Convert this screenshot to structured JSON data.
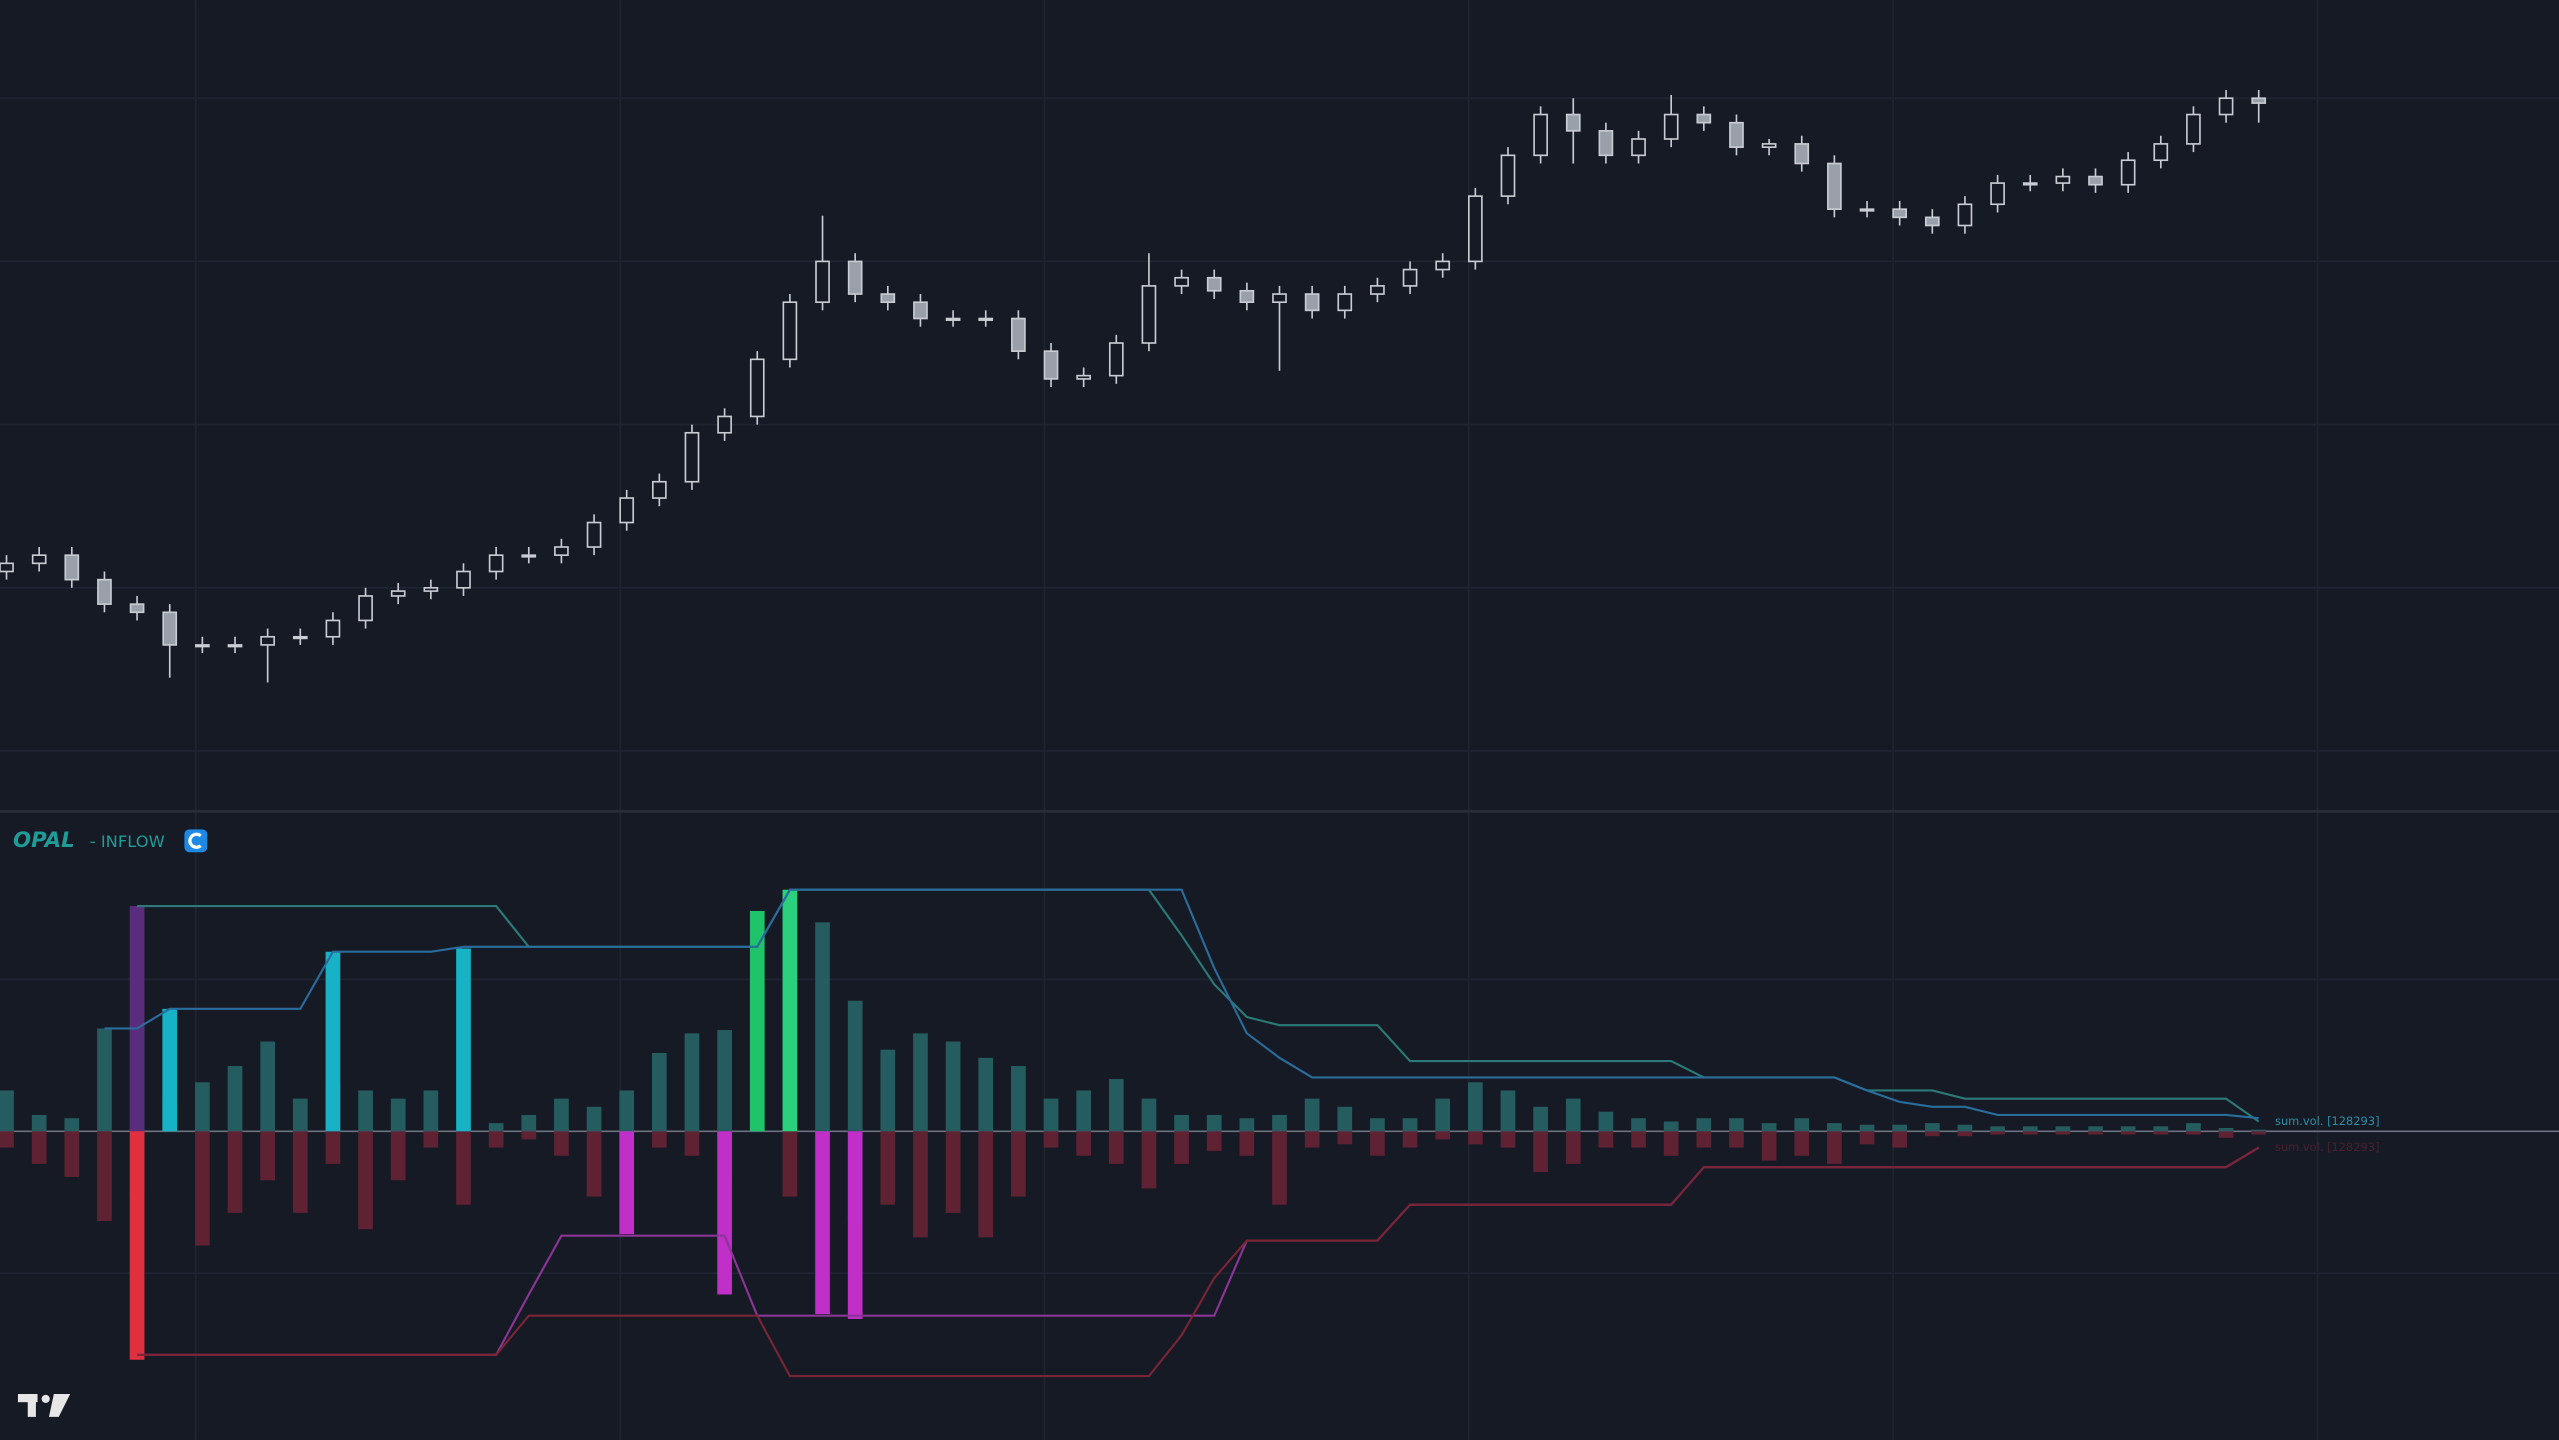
{
  "chart_data": [
    {
      "type": "candlestick",
      "up_color": "#161a25",
      "down_color": "#9aa0aa",
      "wick_color": "#c9ccd2",
      "ylim": [
        0,
        500
      ],
      "open": [
        150,
        155,
        160,
        145,
        130,
        125,
        105,
        105,
        105,
        110,
        110,
        120,
        135,
        138,
        140,
        150,
        160,
        160,
        165,
        180,
        195,
        205,
        235,
        245,
        280,
        315,
        340,
        320,
        315,
        305,
        305,
        305,
        285,
        268,
        270,
        290,
        325,
        330,
        322,
        315,
        320,
        310,
        320,
        325,
        335,
        340,
        380,
        405,
        430,
        420,
        405,
        415,
        430,
        425,
        410,
        412,
        400,
        372,
        372,
        367,
        362,
        375,
        388,
        388,
        392,
        387,
        402,
        412,
        430,
        440
      ],
      "high": [
        160,
        165,
        165,
        150,
        135,
        130,
        110,
        110,
        115,
        115,
        125,
        140,
        143,
        145,
        155,
        165,
        165,
        170,
        185,
        200,
        210,
        240,
        250,
        285,
        320,
        368,
        345,
        325,
        320,
        310,
        310,
        310,
        290,
        275,
        295,
        345,
        335,
        335,
        327,
        325,
        325,
        325,
        330,
        340,
        345,
        385,
        410,
        435,
        440,
        425,
        420,
        442,
        435,
        430,
        415,
        417,
        405,
        377,
        377,
        372,
        380,
        393,
        393,
        397,
        397,
        407,
        417,
        435,
        445,
        445
      ],
      "low": [
        145,
        150,
        140,
        125,
        120,
        85,
        100,
        100,
        82,
        105,
        105,
        115,
        130,
        133,
        135,
        145,
        155,
        155,
        160,
        175,
        190,
        200,
        230,
        240,
        275,
        310,
        315,
        310,
        300,
        300,
        300,
        280,
        263,
        263,
        265,
        285,
        320,
        317,
        310,
        273,
        305,
        305,
        315,
        320,
        330,
        335,
        375,
        400,
        400,
        400,
        400,
        410,
        420,
        405,
        405,
        395,
        367,
        367,
        362,
        357,
        357,
        370,
        383,
        383,
        382,
        382,
        397,
        407,
        425,
        425
      ],
      "close": [
        155,
        160,
        145,
        130,
        125,
        105,
        105,
        105,
        110,
        110,
        120,
        135,
        138,
        140,
        150,
        160,
        160,
        165,
        180,
        195,
        205,
        235,
        245,
        280,
        315,
        340,
        320,
        315,
        305,
        305,
        305,
        285,
        268,
        270,
        290,
        325,
        330,
        322,
        315,
        320,
        310,
        320,
        325,
        335,
        340,
        380,
        405,
        430,
        420,
        405,
        415,
        430,
        425,
        410,
        412,
        400,
        372,
        372,
        367,
        362,
        375,
        388,
        388,
        392,
        387,
        402,
        412,
        430,
        440,
        437
      ]
    },
    {
      "type": "indicator",
      "title": "OPAL",
      "subtitle": "- INFLOW",
      "ylim": [
        -189,
        196
      ],
      "bars_up": {
        "color": "#255c60",
        "values": [
          25,
          10,
          8,
          63,
          65,
          20,
          30,
          40,
          55,
          20,
          30,
          25,
          20,
          25,
          0,
          5,
          10,
          20,
          15,
          25,
          48,
          60,
          62,
          90,
          0,
          128,
          80,
          50,
          60,
          55,
          45,
          40,
          20,
          25,
          32,
          20,
          10,
          10,
          8,
          10,
          20,
          15,
          8,
          8,
          20,
          30,
          25,
          15,
          20,
          12,
          8,
          6,
          8,
          8,
          5,
          8,
          5,
          4,
          4,
          5,
          4,
          3,
          3,
          3,
          3,
          3,
          3,
          5,
          2,
          1
        ]
      },
      "bars_down": {
        "color": "#5e2233",
        "values": [
          -10,
          -20,
          -28,
          -55,
          -40,
          0,
          -70,
          -50,
          -30,
          -50,
          -20,
          -60,
          -30,
          -10,
          -45,
          -10,
          -5,
          -15,
          -40,
          0,
          -10,
          -15,
          -30,
          0,
          -40,
          0,
          -55,
          -45,
          -65,
          -50,
          -65,
          -40,
          -10,
          -15,
          -20,
          -35,
          -20,
          -12,
          -15,
          -45,
          -10,
          -8,
          -15,
          -10,
          -5,
          -8,
          -10,
          -25,
          -20,
          -10,
          -10,
          -15,
          -10,
          -10,
          -18,
          -15,
          -20,
          -8,
          -10,
          -3,
          -3,
          -2,
          -2,
          -2,
          -2,
          -2,
          -2,
          -2,
          -4,
          -2
        ]
      },
      "signals": [
        {
          "index": 4,
          "value": 138,
          "color": "#5a2d7c"
        },
        {
          "index": 4,
          "value": -140,
          "color": "#e0303f"
        },
        {
          "index": 5,
          "value": 75,
          "color": "#17b2c6"
        },
        {
          "index": 10,
          "value": 110,
          "color": "#17b2c6"
        },
        {
          "index": 14,
          "value": 112,
          "color": "#17b2c6"
        },
        {
          "index": 19,
          "value": -63,
          "color": "#c02fc8"
        },
        {
          "index": 22,
          "value": -100,
          "color": "#c02fc8"
        },
        {
          "index": 23,
          "value": 135,
          "color": "#1fc46a"
        },
        {
          "index": 24,
          "value": 148,
          "color": "#2ad07e"
        },
        {
          "index": 25,
          "value": -112,
          "color": "#c02fc8"
        },
        {
          "index": 26,
          "value": -115,
          "color": "#c02fc8"
        }
      ],
      "lines": [
        {
          "color": "#2b7a78",
          "values": [
            null,
            null,
            null,
            null,
            138,
            138,
            138,
            138,
            138,
            138,
            138,
            138,
            138,
            138,
            138,
            138,
            113,
            113,
            113,
            113,
            113,
            113,
            113,
            113,
            148,
            148,
            148,
            148,
            148,
            148,
            148,
            148,
            148,
            148,
            148,
            148,
            120,
            90,
            70,
            65,
            65,
            65,
            65,
            43,
            43,
            43,
            43,
            43,
            43,
            43,
            43,
            43,
            33,
            33,
            33,
            33,
            33,
            25,
            25,
            25,
            20,
            20,
            20,
            20,
            20,
            20,
            20,
            20,
            20,
            6
          ]
        },
        {
          "color": "#2a6c9c",
          "values": [
            null,
            null,
            null,
            63,
            63,
            75,
            75,
            75,
            75,
            75,
            110,
            110,
            110,
            110,
            113,
            113,
            113,
            113,
            113,
            113,
            113,
            113,
            113,
            113,
            148,
            148,
            148,
            148,
            148,
            148,
            148,
            148,
            148,
            148,
            148,
            148,
            148,
            100,
            60,
            45,
            33,
            33,
            33,
            33,
            33,
            33,
            33,
            33,
            33,
            33,
            33,
            33,
            33,
            33,
            33,
            33,
            33,
            25,
            18,
            15,
            15,
            10,
            10,
            10,
            10,
            10,
            10,
            10,
            10,
            8
          ]
        },
        {
          "color": "#8b3596",
          "values": [
            null,
            null,
            null,
            null,
            -137,
            -137,
            -137,
            -137,
            -137,
            -137,
            -137,
            -137,
            -137,
            -137,
            -137,
            -137,
            -100,
            -64,
            -64,
            -64,
            -64,
            -64,
            -64,
            -113,
            -113,
            -113,
            -113,
            -113,
            -113,
            -113,
            -113,
            -113,
            -113,
            -113,
            -113,
            -113,
            -113,
            -113,
            -67,
            -67,
            -67,
            -67,
            -67,
            -45,
            -45,
            -45,
            -45,
            -45,
            -45,
            -45,
            -45,
            -45,
            -22,
            -22,
            -22,
            -22,
            -22,
            -22,
            -22,
            -22,
            -22,
            -22,
            -22,
            -22,
            -22,
            -22,
            -22,
            -22,
            -22,
            -10
          ]
        },
        {
          "color": "#7a2535",
          "values": [
            null,
            null,
            null,
            null,
            -137,
            -137,
            -137,
            -137,
            -137,
            -137,
            -137,
            -137,
            -137,
            -137,
            -137,
            -137,
            -113,
            -113,
            -113,
            -113,
            -113,
            -113,
            -113,
            -113,
            -150,
            -150,
            -150,
            -150,
            -150,
            -150,
            -150,
            -150,
            -150,
            -150,
            -150,
            -150,
            -125,
            -90,
            -67,
            -67,
            -67,
            -67,
            -67,
            -45,
            -45,
            -45,
            -45,
            -45,
            -45,
            -45,
            -45,
            -45,
            -22,
            -22,
            -22,
            -22,
            -22,
            -22,
            -22,
            -22,
            -22,
            -22,
            -22,
            -22,
            -22,
            -22,
            -22,
            -22,
            -22,
            -10
          ]
        }
      ],
      "annotations": [
        {
          "text": "sum.vol. [128293]",
          "color": "#2a8fa8"
        },
        {
          "text": "sum.vol. [128293]",
          "color": "#4a2030"
        }
      ]
    }
  ]
}
